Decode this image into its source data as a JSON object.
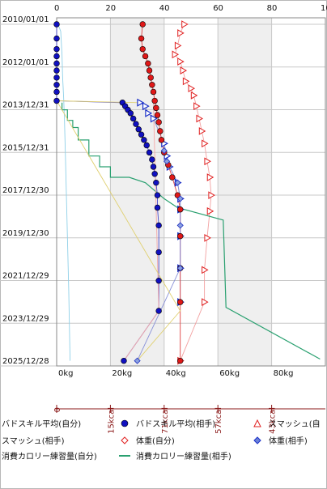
{
  "chart_data": {
    "type": "scatter",
    "orientation": "horizontal-values-vertical-dates",
    "date_axis": {
      "labels": [
        "2010/01/01",
        "2012/01/01",
        "2013/12/31",
        "2015/12/31",
        "2017/12/30",
        "2019/12/30",
        "2021/12/29",
        "2023/12/29",
        "2025/12/28"
      ],
      "top_label": "2010/01/01",
      "bottom_label": "2025/12/28"
    },
    "top_axis_ticks": [
      "0",
      "20",
      "40",
      "60",
      "80",
      "10"
    ],
    "bottom_axis_ticks": [
      "0kg",
      "20kg",
      "40kg",
      "60kg",
      "80kg"
    ],
    "xlim": [
      0,
      100
    ],
    "calorie_axis_ticks": [
      "0",
      "15kcal",
      "71kcal",
      "57kcal",
      "43kcal"
    ],
    "shaded_bands": [
      [
        20,
        40
      ],
      [
        60,
        80
      ]
    ],
    "grid": true,
    "series": [
      {
        "name": "バドスキル平均(自分)",
        "marker": "dot",
        "color": "#1010c0",
        "points": [
          {
            "date": "2010-01-01",
            "value": 0
          },
          {
            "date": "2010-09-01",
            "value": 0
          },
          {
            "date": "2011-03-01",
            "value": 0
          },
          {
            "date": "2011-07-01",
            "value": 0
          },
          {
            "date": "2011-11-01",
            "value": 0
          },
          {
            "date": "2012-03-01",
            "value": 0
          },
          {
            "date": "2012-07-01",
            "value": 0
          },
          {
            "date": "2012-11-01",
            "value": 0
          },
          {
            "date": "2013-03-01",
            "value": 0
          },
          {
            "date": "2013-08-01",
            "value": 0
          },
          {
            "date": "2013-09-01",
            "value": 24.5
          },
          {
            "date": "2013-11-01",
            "value": 25.5
          },
          {
            "date": "2014-01-01",
            "value": 26.5
          },
          {
            "date": "2014-03-01",
            "value": 27.5
          },
          {
            "date": "2014-06-01",
            "value": 28.5
          },
          {
            "date": "2014-09-01",
            "value": 29.5
          },
          {
            "date": "2014-12-01",
            "value": 30.5
          },
          {
            "date": "2015-03-01",
            "value": 31.5
          },
          {
            "date": "2015-06-01",
            "value": 32.5
          },
          {
            "date": "2015-09-01",
            "value": 33.5
          },
          {
            "date": "2016-01-01",
            "value": 34.5
          },
          {
            "date": "2016-05-01",
            "value": 35.5
          },
          {
            "date": "2016-09-01",
            "value": 36
          },
          {
            "date": "2017-01-01",
            "value": 36.5
          },
          {
            "date": "2017-06-01",
            "value": 37
          },
          {
            "date": "2018-01-01",
            "value": 37.5
          },
          {
            "date": "2018-08-01",
            "value": 37.5
          },
          {
            "date": "2019-06-01",
            "value": 38
          },
          {
            "date": "2020-09-01",
            "value": 38
          },
          {
            "date": "2022-01-01",
            "value": 38
          },
          {
            "date": "2023-06-01",
            "value": 38
          },
          {
            "date": "2025-10-01",
            "value": 25
          }
        ]
      },
      {
        "name": "スマッシュ(自分)",
        "marker": "triangle",
        "color": "#e02020",
        "points": [
          {
            "date": "2010-01-01",
            "value": 47.5
          },
          {
            "date": "2010-06-01",
            "value": 46
          },
          {
            "date": "2011-01-01",
            "value": 45
          },
          {
            "date": "2011-06-01",
            "value": 44
          },
          {
            "date": "2011-10-01",
            "value": 46
          },
          {
            "date": "2012-03-01",
            "value": 47
          },
          {
            "date": "2012-09-01",
            "value": 48
          },
          {
            "date": "2013-01-01",
            "value": 50
          },
          {
            "date": "2013-05-01",
            "value": 51
          },
          {
            "date": "2013-11-01",
            "value": 52
          },
          {
            "date": "2014-06-01",
            "value": 53
          },
          {
            "date": "2015-01-01",
            "value": 54
          },
          {
            "date": "2015-08-01",
            "value": 55
          },
          {
            "date": "2016-06-01",
            "value": 56
          },
          {
            "date": "2017-03-01",
            "value": 57
          },
          {
            "date": "2018-01-01",
            "value": 57.5
          },
          {
            "date": "2018-10-01",
            "value": 57
          },
          {
            "date": "2020-01-01",
            "value": 56
          },
          {
            "date": "2021-07-01",
            "value": 55
          },
          {
            "date": "2023-01-01",
            "value": 55
          },
          {
            "date": "2025-10-01",
            "value": 46
          }
        ]
      },
      {
        "name": "スマッシュ(相手)",
        "marker": "triangle-blue",
        "color": "#1a30c8",
        "points": [
          {
            "date": "2013-09-01",
            "value": 31
          },
          {
            "date": "2013-11-01",
            "value": 33
          },
          {
            "date": "2014-03-01",
            "value": 34
          },
          {
            "date": "2014-06-01",
            "value": 36
          },
          {
            "date": "2015-08-01",
            "value": 40
          },
          {
            "date": "2016-03-01",
            "value": 41
          },
          {
            "date": "2016-09-01",
            "value": 42
          },
          {
            "date": "2017-06-01",
            "value": 45
          },
          {
            "date": "2018-03-01",
            "value": 46
          },
          {
            "date": "2018-09-01",
            "value": 46
          },
          {
            "date": "2019-12-01",
            "value": 46
          },
          {
            "date": "2021-06-01",
            "value": 46
          },
          {
            "date": "2023-01-01",
            "value": 46
          }
        ]
      },
      {
        "name": "体重(自分)",
        "marker": "dot",
        "color": "#e01818",
        "points": [
          {
            "date": "2010-01-01",
            "value": 32
          },
          {
            "date": "2010-09-01",
            "value": 31.5
          },
          {
            "date": "2011-03-01",
            "value": 32
          },
          {
            "date": "2011-07-01",
            "value": 33
          },
          {
            "date": "2011-11-01",
            "value": 34
          },
          {
            "date": "2012-03-01",
            "value": 34.5
          },
          {
            "date": "2012-07-01",
            "value": 35
          },
          {
            "date": "2012-11-01",
            "value": 35.5
          },
          {
            "date": "2013-03-01",
            "value": 36
          },
          {
            "date": "2013-08-01",
            "value": 36.5
          },
          {
            "date": "2013-12-01",
            "value": 37
          },
          {
            "date": "2014-04-01",
            "value": 37.5
          },
          {
            "date": "2014-08-01",
            "value": 38
          },
          {
            "date": "2015-01-01",
            "value": 38.5
          },
          {
            "date": "2015-06-01",
            "value": 39
          },
          {
            "date": "2016-01-01",
            "value": 40
          },
          {
            "date": "2016-08-01",
            "value": 41.5
          },
          {
            "date": "2017-03-01",
            "value": 43
          },
          {
            "date": "2018-01-01",
            "value": 45
          },
          {
            "date": "2018-09-01",
            "value": 46
          },
          {
            "date": "2019-12-01",
            "value": 46
          },
          {
            "date": "2021-06-01",
            "value": 46
          },
          {
            "date": "2023-01-01",
            "value": 46
          },
          {
            "date": "2025-10-01",
            "value": 46
          }
        ]
      },
      {
        "name": "体重(相手)",
        "marker": "diamond",
        "color": "#2030c0",
        "points": [
          {
            "date": "2015-12-01",
            "value": 40
          },
          {
            "date": "2016-06-01",
            "value": 41
          },
          {
            "date": "2017-06-01",
            "value": 45
          },
          {
            "date": "2018-03-01",
            "value": 46
          },
          {
            "date": "2019-06-01",
            "value": 46
          },
          {
            "date": "2021-06-01",
            "value": 46
          },
          {
            "date": "2025-10-01",
            "value": 30
          }
        ]
      },
      {
        "name": "消費カロリー練習量(自分)",
        "marker": "line",
        "color": "#8fd0e8",
        "points": [
          {
            "date": "2010-01-01",
            "value": 0.5
          },
          {
            "date": "2010-05-01",
            "value": 1.5
          },
          {
            "date": "2011-06-01",
            "value": 2
          },
          {
            "date": "2012-06-01",
            "value": 2.2
          },
          {
            "date": "2013-06-01",
            "value": 2.6
          },
          {
            "date": "2014-06-01",
            "value": 2.9
          },
          {
            "date": "2016-06-01",
            "value": 3.3
          },
          {
            "date": "2018-06-01",
            "value": 3.7
          },
          {
            "date": "2020-06-01",
            "value": 4.1
          },
          {
            "date": "2022-06-01",
            "value": 4.5
          },
          {
            "date": "2024-06-01",
            "value": 4.8
          },
          {
            "date": "2025-10-01",
            "value": 5
          }
        ]
      },
      {
        "name": "消費カロリー練習量(相手)",
        "marker": "line",
        "color": "#2aa070",
        "points": [
          {
            "date": "2013-09-01",
            "value": 2
          },
          {
            "date": "2014-01-01",
            "value": 2
          },
          {
            "date": "2014-01-01",
            "value": 4
          },
          {
            "date": "2014-07-01",
            "value": 4
          },
          {
            "date": "2014-07-01",
            "value": 6
          },
          {
            "date": "2014-11-01",
            "value": 6
          },
          {
            "date": "2014-11-01",
            "value": 8
          },
          {
            "date": "2015-06-01",
            "value": 8
          },
          {
            "date": "2015-06-01",
            "value": 12
          },
          {
            "date": "2016-03-01",
            "value": 12
          },
          {
            "date": "2016-03-01",
            "value": 16
          },
          {
            "date": "2016-09-01",
            "value": 16
          },
          {
            "date": "2016-09-01",
            "value": 20
          },
          {
            "date": "2017-03-01",
            "value": 20
          },
          {
            "date": "2017-03-01",
            "value": 27
          },
          {
            "date": "2017-06-01",
            "value": 33
          },
          {
            "date": "2018-03-01",
            "value": 40
          },
          {
            "date": "2018-08-01",
            "value": 45
          },
          {
            "date": "2019-03-01",
            "value": 62
          },
          {
            "date": "2023-04-01",
            "value": 63
          },
          {
            "date": "2025-09-01",
            "value": 98
          }
        ]
      },
      {
        "name": "",
        "marker": "line",
        "color": "#f4a8a8",
        "points": [
          {
            "date": "2025-10-01",
            "value": 25
          },
          {
            "date": "2023-06-01",
            "value": 38
          },
          {
            "date": "2013-09-01",
            "value": 36
          }
        ]
      },
      {
        "name": "",
        "marker": "line",
        "color": "#e0d070",
        "points": [
          {
            "date": "2025-10-01",
            "value": 30
          },
          {
            "date": "2023-06-01",
            "value": 46
          },
          {
            "date": "2013-08-01",
            "value": 0
          },
          {
            "date": "2013-09-01",
            "value": 31
          }
        ]
      }
    ],
    "legend": {
      "placement": "bottom",
      "rows": [
        [
          {
            "label": "バドスキル平均(自分)",
            "marker": "none"
          },
          {
            "label": "バドスキル平均(相手)",
            "marker": "dot-blue"
          },
          {
            "label": "スマッシュ(自",
            "marker": "triangle-red"
          }
        ],
        [
          {
            "label": "スマッシュ(相手)",
            "marker": "none"
          },
          {
            "label": "体重(自分)",
            "marker": "diamond-red"
          },
          {
            "label": "体重(相手)",
            "marker": "diamond-blue"
          }
        ],
        [
          {
            "label": "消費カロリー練習量(自分)",
            "marker": "none"
          },
          {
            "label": "消費カロリー練習量(相手)",
            "marker": "line-green"
          }
        ]
      ]
    }
  }
}
